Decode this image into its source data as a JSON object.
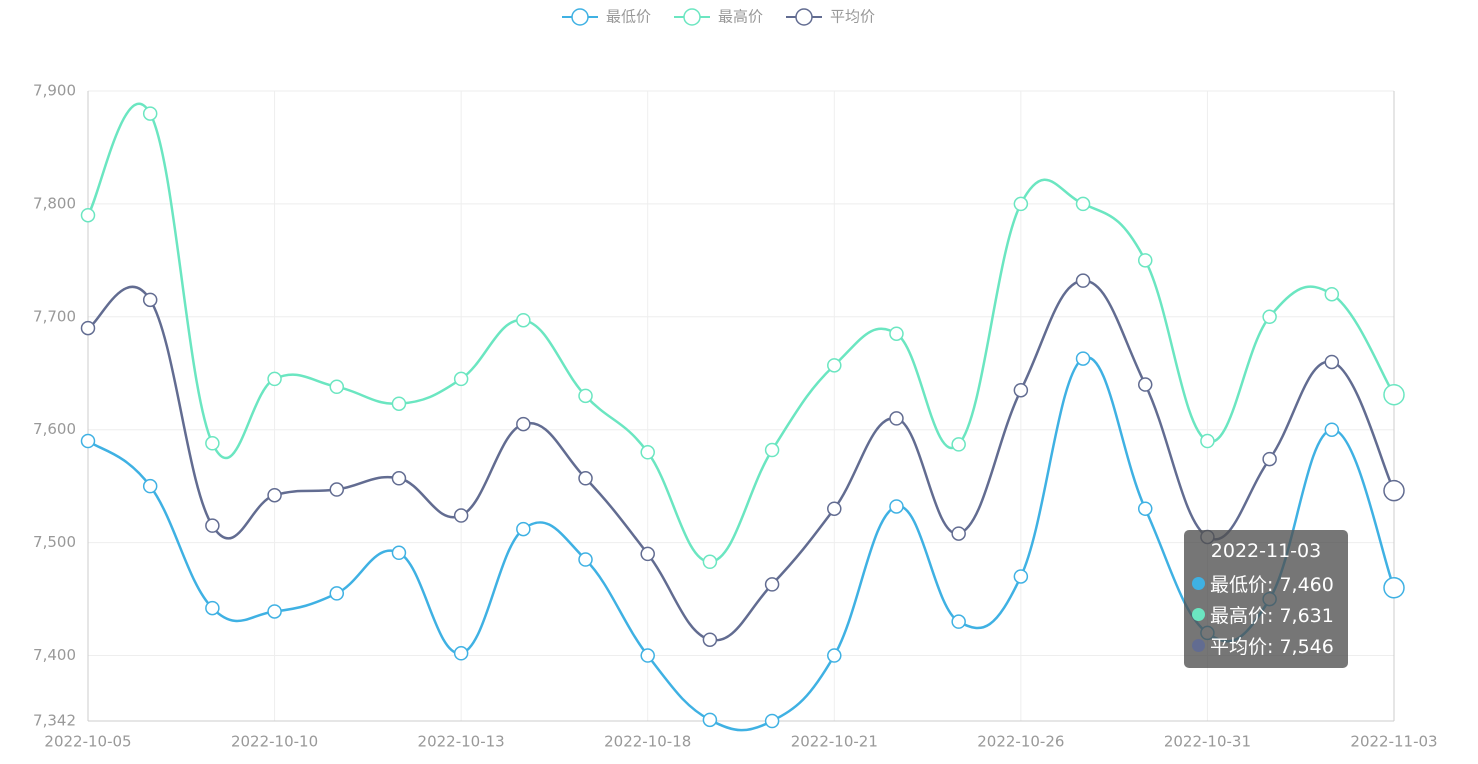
{
  "chart_data": {
    "type": "line",
    "categories": [
      "2022-10-05",
      null,
      null,
      "2022-10-10",
      null,
      null,
      "2022-10-13",
      null,
      null,
      "2022-10-18",
      null,
      null,
      "2022-10-21",
      null,
      null,
      "2022-10-26",
      null,
      null,
      "2022-10-31",
      null,
      null,
      "2022-11-03"
    ],
    "series": [
      {
        "name": "最低价",
        "color": "#3fb1e3",
        "values": [
          7590,
          7550,
          7442,
          7439,
          7455,
          7491,
          7402,
          7512,
          7485,
          7400,
          7343,
          7342,
          7400,
          7532,
          7430,
          7470,
          7663,
          7530,
          7420,
          7450,
          7600,
          7460
        ]
      },
      {
        "name": "最高价",
        "color": "#6be6c1",
        "values": [
          7790,
          7880,
          7588,
          7645,
          7638,
          7623,
          7645,
          7697,
          7630,
          7580,
          7483,
          7582,
          7657,
          7685,
          7587,
          7800,
          7800,
          7750,
          7590,
          7700,
          7720,
          7631
        ]
      },
      {
        "name": "平均价",
        "color": "#626c91",
        "values": [
          7690,
          7715,
          7515,
          7542,
          7547,
          7557,
          7524,
          7605,
          7557,
          7490,
          7414,
          7463,
          7530,
          7610,
          7508,
          7635,
          7732,
          7640,
          7505,
          7574,
          7660,
          7546
        ]
      }
    ],
    "ylim": [
      7342,
      7900
    ],
    "yticks": [
      {
        "value": 7342,
        "label": "7,342"
      },
      {
        "value": 7400,
        "label": "7,400"
      },
      {
        "value": 7500,
        "label": "7,500"
      },
      {
        "value": 7600,
        "label": "7,600"
      },
      {
        "value": 7700,
        "label": "7,700"
      },
      {
        "value": 7800,
        "label": "7,800"
      },
      {
        "value": 7900,
        "label": "7,900"
      }
    ],
    "grid": true,
    "legend": "top"
  },
  "tooltip": {
    "title": "2022-11-03",
    "rows": [
      "最低价: 7,460",
      "最高价: 7,631",
      "平均价: 7,546"
    ]
  }
}
